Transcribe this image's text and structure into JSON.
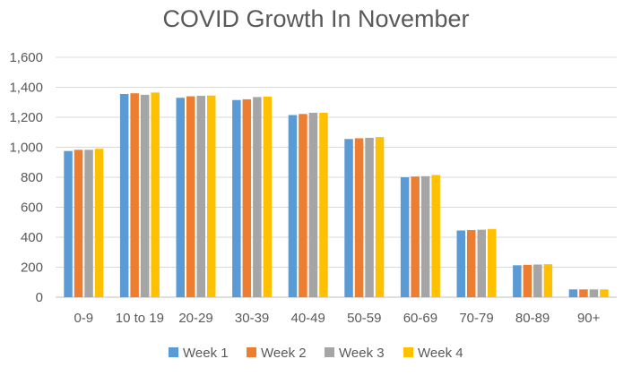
{
  "chart_data": {
    "type": "bar",
    "title": "COVID Growth In November",
    "xlabel": "",
    "ylabel": "",
    "categories": [
      "0-9",
      "10 to 19",
      "20-29",
      "30-39",
      "40-49",
      "50-59",
      "60-69",
      "70-79",
      "80-89",
      "90+"
    ],
    "ylim": [
      0,
      1600
    ],
    "yticks": [
      0,
      200,
      400,
      600,
      800,
      1000,
      1200,
      1400,
      1600
    ],
    "ytick_labels": [
      "0",
      "200",
      "400",
      "600",
      "800",
      "1,000",
      "1,200",
      "1,400",
      "1,600"
    ],
    "grid": true,
    "legend_position": "bottom",
    "series": [
      {
        "name": "Week 1",
        "color": "#5B9BD5",
        "values": [
          975,
          1355,
          1330,
          1315,
          1215,
          1055,
          800,
          445,
          213,
          52
        ]
      },
      {
        "name": "Week 2",
        "color": "#ED7D31",
        "values": [
          983,
          1360,
          1340,
          1320,
          1222,
          1060,
          805,
          448,
          216,
          52
        ]
      },
      {
        "name": "Week 3",
        "color": "#A5A5A5",
        "values": [
          983,
          1350,
          1343,
          1335,
          1230,
          1063,
          807,
          450,
          218,
          52
        ]
      },
      {
        "name": "Week 4",
        "color": "#FFC000",
        "values": [
          990,
          1365,
          1345,
          1338,
          1230,
          1068,
          815,
          455,
          220,
          52
        ]
      }
    ]
  }
}
